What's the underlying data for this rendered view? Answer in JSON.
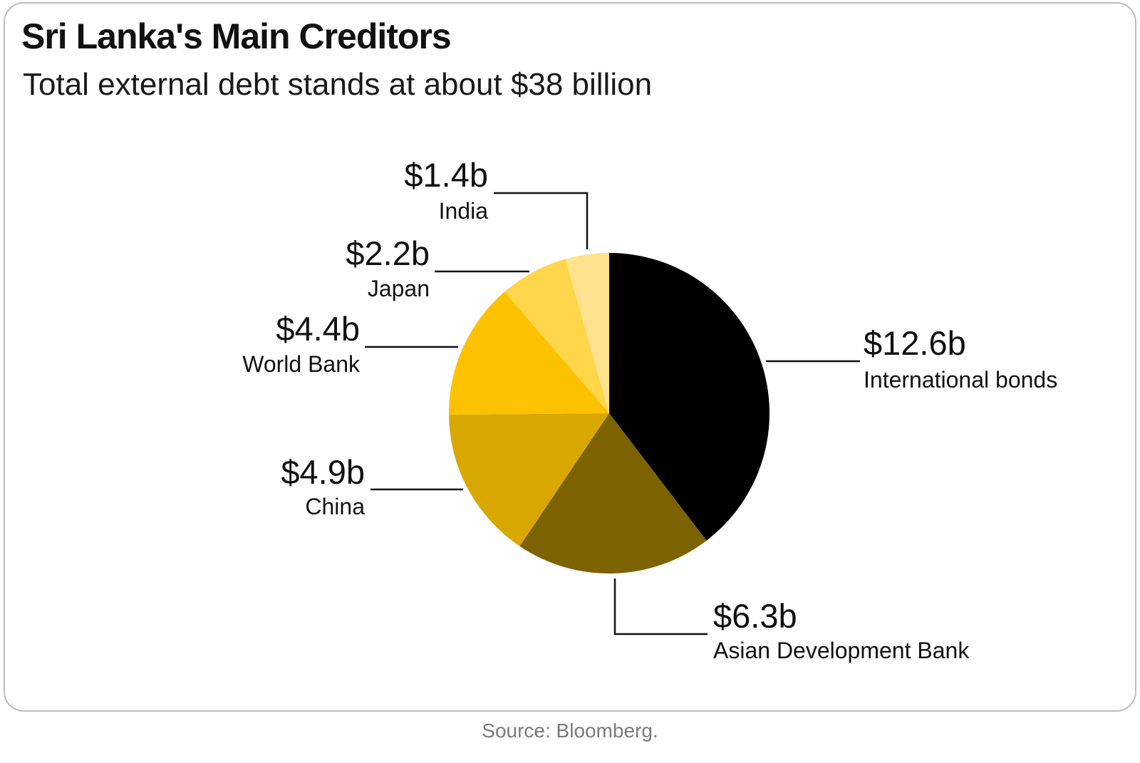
{
  "title": "Sri Lanka's Main Creditors",
  "subtitle": "Total external debt stands at about $38 billion",
  "source": "Source: Bloomberg.",
  "chart_data": {
    "type": "pie",
    "title": "Sri Lanka's Main Creditors",
    "subtitle": "Total external debt stands at about $38 billion",
    "unit": "billion USD",
    "slices": [
      {
        "label": "International bonds",
        "value": 12.6,
        "display": "$12.6b",
        "color": "#000000"
      },
      {
        "label": "Asian Development Bank",
        "value": 6.3,
        "display": "$6.3b",
        "color": "#7d6200"
      },
      {
        "label": "China",
        "value": 4.9,
        "display": "$4.9b",
        "color": "#d9a800"
      },
      {
        "label": "World Bank",
        "value": 4.4,
        "display": "$4.4b",
        "color": "#fcc200"
      },
      {
        "label": "Japan",
        "value": 2.2,
        "display": "$2.2b",
        "color": "#ffd54a"
      },
      {
        "label": "India",
        "value": 1.4,
        "display": "$1.4b",
        "color": "#ffe28d"
      }
    ]
  }
}
